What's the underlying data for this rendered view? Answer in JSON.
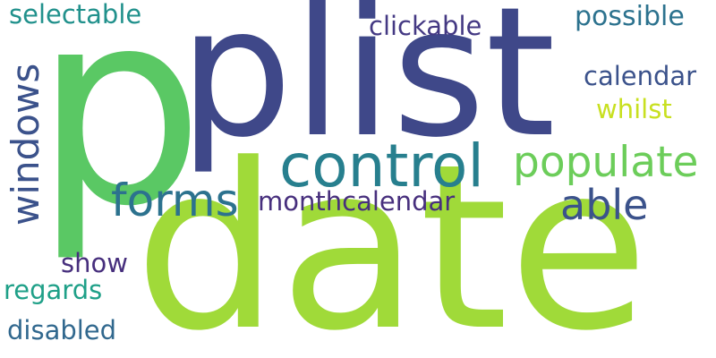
{
  "words": [
    {
      "id": "plist",
      "text": "plist",
      "color": "#3f4889"
    },
    {
      "id": "date",
      "text": "date",
      "color": "#a0da39"
    },
    {
      "id": "p-big",
      "text": "p",
      "color": "#5ac864"
    },
    {
      "id": "control",
      "text": "control",
      "color": "#277f8e"
    },
    {
      "id": "populate",
      "text": "populate",
      "color": "#6ccd5a"
    },
    {
      "id": "forms",
      "text": "forms",
      "color": "#2c728e"
    },
    {
      "id": "able",
      "text": "able",
      "color": "#3b528b"
    },
    {
      "id": "windows",
      "text": "windows",
      "color": "#3b528b"
    },
    {
      "id": "monthcalendar",
      "text": "monthcalendar",
      "color": "#472f7d"
    },
    {
      "id": "clickable",
      "text": "clickable",
      "color": "#443983"
    },
    {
      "id": "possible",
      "text": "possible",
      "color": "#2c728e"
    },
    {
      "id": "calendar",
      "text": "calendar",
      "color": "#3b528b"
    },
    {
      "id": "whilst",
      "text": "whilst",
      "color": "#c8e020"
    },
    {
      "id": "selectable",
      "text": "selectable",
      "color": "#21918c"
    },
    {
      "id": "show",
      "text": "show",
      "color": "#472f7d"
    },
    {
      "id": "regards",
      "text": "regards",
      "color": "#1fa088"
    },
    {
      "id": "disabled",
      "text": "disabled",
      "color": "#31688e"
    }
  ]
}
